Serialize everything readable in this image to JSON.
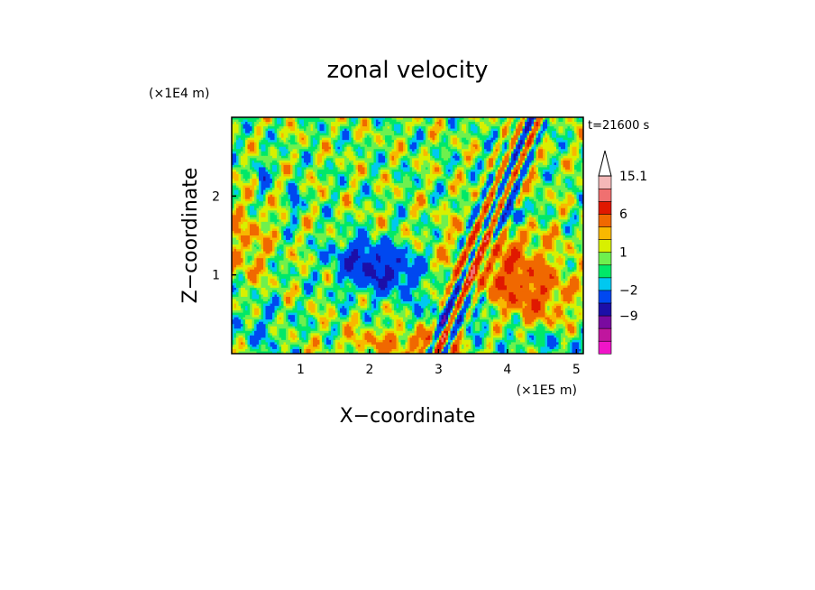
{
  "chart_data": {
    "type": "heatmap",
    "title": "zonal velocity",
    "xlabel": "X−coordinate",
    "ylabel": "Z−coordinate",
    "x_unit": "(×1E5 m)",
    "y_unit": "(×1E4 m)",
    "time_label": "t=21600 s",
    "xlim": [
      0.0,
      5.1
    ],
    "ylim": [
      0.0,
      3.0
    ],
    "x_ticks": [
      "1",
      "2",
      "3",
      "4",
      "5"
    ],
    "y_ticks": [
      "1",
      "2"
    ],
    "x_tick_values": [
      1,
      2,
      3,
      4,
      5
    ],
    "y_tick_values": [
      1,
      2
    ],
    "colorbar": {
      "levels": [
        -15.1,
        -12,
        -9,
        -6,
        -2,
        -1,
        0,
        1,
        2,
        3,
        6,
        9,
        12,
        15.1
      ],
      "colors": [
        "#f015c8",
        "#c0169e",
        "#7a0aa0",
        "#1c0fa8",
        "#0048f0",
        "#00c8f0",
        "#00e868",
        "#6ef04e",
        "#d8f000",
        "#f8b800",
        "#f06800",
        "#e01800",
        "#f07070",
        "#f4b8b8",
        "#ffffff"
      ],
      "tick_labels": [
        "15.1",
        "6",
        "1",
        "−2",
        "−9"
      ],
      "tick_values": [
        15.1,
        6,
        1,
        -2,
        -9
      ]
    }
  }
}
